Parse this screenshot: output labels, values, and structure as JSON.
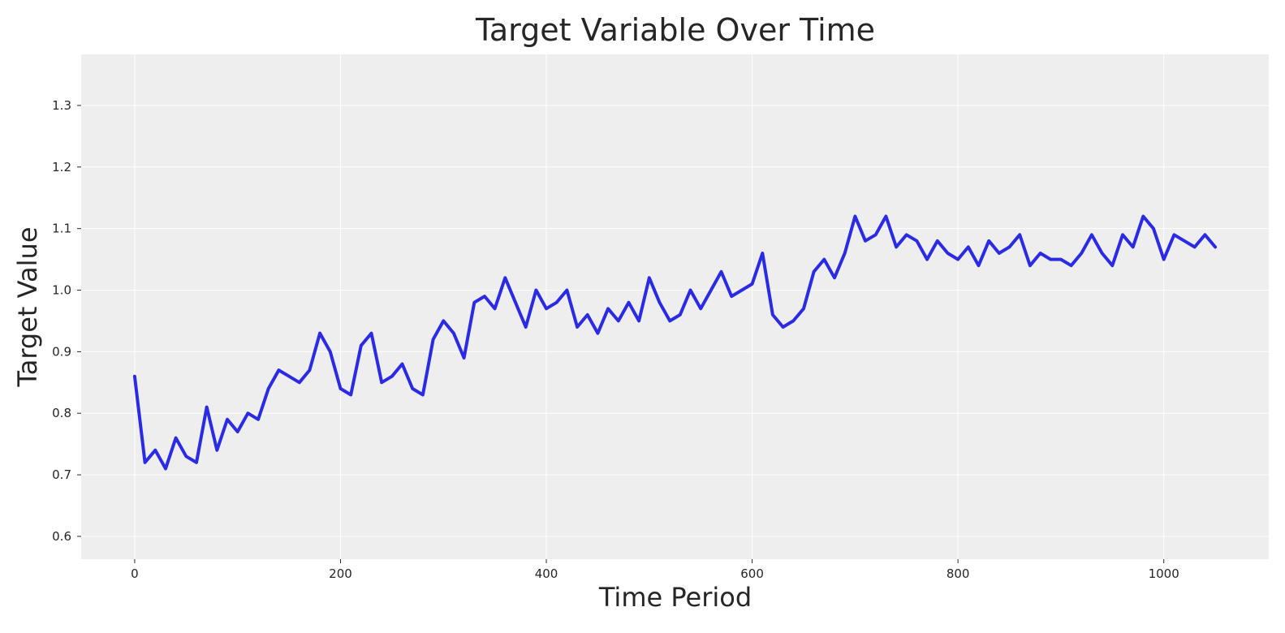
{
  "chart_data": {
    "type": "line",
    "title": "Target Variable Over Time",
    "xlabel": "Time Period",
    "ylabel": "Target Value",
    "xlim": [
      -52,
      1102
    ],
    "ylim": [
      0.563,
      1.383
    ],
    "xticks": [
      0,
      200,
      400,
      600,
      800,
      1000
    ],
    "yticks": [
      0.6,
      0.7,
      0.8,
      0.9,
      1.0,
      1.1,
      1.2,
      1.3
    ],
    "ytick_labels": [
      "0.6",
      "0.7",
      "0.8",
      "0.9",
      "1.0",
      "1.1",
      "1.2",
      "1.3"
    ],
    "grid": true,
    "legend": "none",
    "series": [
      {
        "name": "",
        "color": "#2b2be6",
        "x": [
          0,
          10,
          20,
          30,
          40,
          50,
          60,
          70,
          80,
          90,
          100,
          110,
          120,
          130,
          140,
          150,
          160,
          170,
          180,
          190,
          200,
          210,
          220,
          230,
          240,
          250,
          260,
          270,
          280,
          290,
          300,
          310,
          320,
          330,
          340,
          350,
          360,
          370,
          380,
          390,
          400,
          410,
          420,
          430,
          440,
          450,
          460,
          470,
          480,
          490,
          500,
          510,
          520,
          530,
          540,
          550,
          560,
          570,
          580,
          590,
          600,
          610,
          620,
          630,
          640,
          650,
          660,
          670,
          680,
          690,
          700,
          710,
          720,
          730,
          740,
          750,
          760,
          770,
          780,
          790,
          800,
          810,
          820,
          830,
          840,
          850,
          860,
          870,
          880,
          890,
          900,
          910,
          920,
          930,
          940,
          950,
          960,
          970,
          980,
          990,
          1000,
          1010,
          1020,
          1030,
          1040,
          1050
        ],
        "y": [
          0.86,
          0.72,
          0.74,
          0.71,
          0.76,
          0.73,
          0.72,
          0.81,
          0.74,
          0.79,
          0.77,
          0.8,
          0.79,
          0.84,
          0.87,
          0.86,
          0.85,
          0.87,
          0.93,
          0.9,
          0.84,
          0.83,
          0.91,
          0.93,
          0.85,
          0.86,
          0.88,
          0.84,
          0.83,
          0.92,
          0.95,
          0.93,
          0.89,
          0.98,
          0.99,
          0.97,
          1.02,
          0.98,
          0.94,
          1.0,
          0.97,
          0.98,
          1.0,
          0.94,
          0.96,
          0.93,
          0.97,
          0.95,
          0.98,
          0.95,
          1.02,
          0.98,
          0.95,
          0.96,
          1.0,
          0.97,
          1.0,
          1.03,
          0.99,
          1.0,
          1.01,
          1.06,
          0.96,
          0.94,
          0.95,
          0.97,
          1.03,
          1.05,
          1.02,
          1.06,
          1.12,
          1.08,
          1.09,
          1.12,
          1.07,
          1.09,
          1.08,
          1.05,
          1.08,
          1.06,
          1.05,
          1.07,
          1.04,
          1.08,
          1.06,
          1.07,
          1.09,
          1.04,
          1.06,
          1.05,
          1.05,
          1.04,
          1.06,
          1.09,
          1.06,
          1.04,
          1.09,
          1.07,
          1.12,
          1.1,
          1.05,
          1.09,
          1.08,
          1.07,
          1.09,
          1.07
        ]
      }
    ]
  }
}
